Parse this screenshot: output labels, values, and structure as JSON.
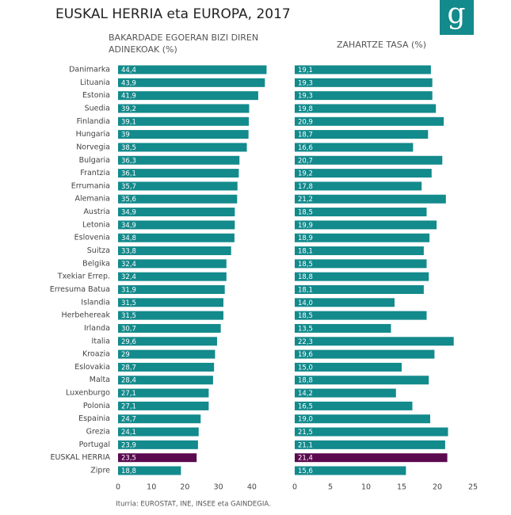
{
  "title": "EUSKAL HERRIA eta EUROPA, 2017",
  "logo": "g",
  "source": "Iturria: EUROSTAT, INE, INSEE eta GAINDEGIA.",
  "chart_data": [
    {
      "type": "bar",
      "orientation": "horizontal",
      "title": [
        "BAKARDADE EGOERAN BIZI DIREN",
        "ADINEKOAK (%)"
      ],
      "categories": [
        "Danimarka",
        "Lituania",
        "Estonia",
        "Suedia",
        "Finlandia",
        "Hungaria",
        "Norvegia",
        "Bulgaria",
        "Frantzia",
        "Errumania",
        "Alemania",
        "Austria",
        "Letonia",
        "Eslovenia",
        "Suitza",
        "Belgika",
        "Txekiar Errep.",
        "Erresuma Batua",
        "Islandia",
        "Herbehereak",
        "Irlanda",
        "Italia",
        "Kroazia",
        "Eslovakia",
        "Malta",
        "Luxenburgo",
        "Polonia",
        "Espainia",
        "Grezia",
        "Portugal",
        "EUSKAL HERRIA",
        "Zipre"
      ],
      "values": [
        44.4,
        43.9,
        41.9,
        39.2,
        39.1,
        39,
        38.5,
        36.3,
        36.1,
        35.7,
        35.6,
        34.9,
        34.9,
        34.8,
        33.8,
        32.4,
        32.4,
        31.9,
        31.5,
        31.5,
        30.7,
        29.6,
        29,
        28.7,
        28.4,
        27.1,
        27.1,
        24.7,
        24.1,
        23.9,
        23.5,
        18.8
      ],
      "value_labels": [
        "44,4",
        "43,9",
        "41,9",
        "39,2",
        "39,1",
        "39",
        "38,5",
        "36,3",
        "36,1",
        "35,7",
        "35,6",
        "34,9",
        "34,9",
        "34,8",
        "33,8",
        "32,4",
        "32,4",
        "31,9",
        "31,5",
        "31,5",
        "30,7",
        "29,6",
        "29",
        "28,7",
        "28,4",
        "27,1",
        "27,1",
        "24,7",
        "24,1",
        "23,9",
        "23,5",
        "18,8"
      ],
      "colors": [
        "#138a8c",
        "#138a8c",
        "#138a8c",
        "#138a8c",
        "#138a8c",
        "#138a8c",
        "#138a8c",
        "#138a8c",
        "#138a8c",
        "#138a8c",
        "#138a8c",
        "#138a8c",
        "#138a8c",
        "#138a8c",
        "#138a8c",
        "#138a8c",
        "#138a8c",
        "#138a8c",
        "#138a8c",
        "#138a8c",
        "#138a8c",
        "#138a8c",
        "#138a8c",
        "#138a8c",
        "#138a8c",
        "#138a8c",
        "#138a8c",
        "#138a8c",
        "#138a8c",
        "#138a8c",
        "#5b0a50",
        "#138a8c"
      ],
      "xlim": [
        0,
        45
      ],
      "xticks": [
        0,
        10,
        20,
        30,
        40
      ]
    },
    {
      "type": "bar",
      "orientation": "horizontal",
      "title": [
        "ZAHARTZE TASA (%)"
      ],
      "values": [
        19.1,
        19.3,
        19.3,
        19.8,
        20.9,
        18.7,
        16.6,
        20.7,
        19.2,
        17.8,
        21.2,
        18.5,
        19.9,
        18.9,
        18.1,
        18.5,
        18.8,
        18.1,
        14.0,
        18.5,
        13.5,
        22.3,
        19.6,
        15.0,
        18.8,
        14.2,
        16.5,
        19.0,
        21.5,
        21.1,
        21.4,
        15.6
      ],
      "value_labels": [
        "19,1",
        "19,3",
        "19,3",
        "19,8",
        "20,9",
        "18,7",
        "16,6",
        "20,7",
        "19,2",
        "17,8",
        "21,2",
        "18,5",
        "19,9",
        "18,9",
        "18,1",
        "18,5",
        "18,8",
        "18,1",
        "14,0",
        "18,5",
        "13,5",
        "22,3",
        "19,6",
        "15,0",
        "18,8",
        "14,2",
        "16,5",
        "19,0",
        "21,5",
        "21,1",
        "21,4",
        "15,6"
      ],
      "colors": [
        "#138a8c",
        "#138a8c",
        "#138a8c",
        "#138a8c",
        "#138a8c",
        "#138a8c",
        "#138a8c",
        "#138a8c",
        "#138a8c",
        "#138a8c",
        "#138a8c",
        "#138a8c",
        "#138a8c",
        "#138a8c",
        "#138a8c",
        "#138a8c",
        "#138a8c",
        "#138a8c",
        "#138a8c",
        "#138a8c",
        "#138a8c",
        "#138a8c",
        "#138a8c",
        "#138a8c",
        "#138a8c",
        "#138a8c",
        "#138a8c",
        "#138a8c",
        "#138a8c",
        "#138a8c",
        "#5b0a50",
        "#138a8c"
      ],
      "xlim": [
        0,
        25
      ],
      "xticks": [
        0,
        5,
        10,
        15,
        20,
        25
      ]
    }
  ]
}
